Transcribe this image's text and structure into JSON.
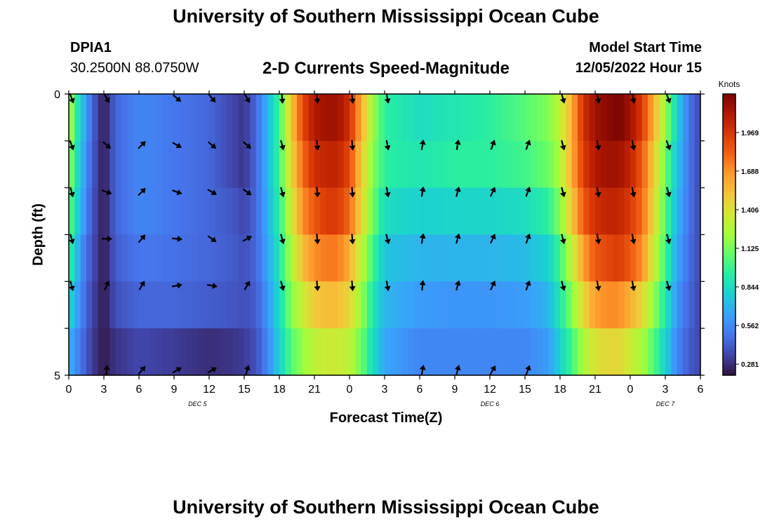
{
  "page": {
    "title_top": "University of Southern Mississippi Ocean Cube",
    "title_bottom": "University of Southern Mississippi Ocean Cube",
    "station_id": "DPIA1",
    "station_coords": "30.2500N  88.0750W",
    "chart_title": "2-D Currents Speed-Magnitude",
    "model_start_label": "Model Start Time",
    "model_start_value": "12/05/2022 Hour 15"
  },
  "colors": {
    "colormap": [
      "#30123b",
      "#4145ab",
      "#4675ed",
      "#39a2fc",
      "#1bcfd4",
      "#24eca6",
      "#61fc6c",
      "#a4fc3b",
      "#d1e834",
      "#f3c63a",
      "#fe9b2d",
      "#f36315",
      "#d93806",
      "#b11901",
      "#7a0402"
    ],
    "arrow": "#000000"
  },
  "chart_data": {
    "type": "heatmap",
    "title": "2-D Currents Speed-Magnitude",
    "xlabel": "Forecast Time(Z)",
    "ylabel": "Depth (ft)",
    "x_tick_labels": [
      "0",
      "3",
      "6",
      "9",
      "12",
      "15",
      "18",
      "21",
      "0",
      "3",
      "6",
      "9",
      "12",
      "15",
      "18",
      "21",
      "0",
      "3",
      "6"
    ],
    "x_hours": [
      0,
      3,
      6,
      9,
      12,
      15,
      18,
      21,
      24,
      27,
      30,
      33,
      36,
      39,
      42,
      45,
      48,
      51,
      54
    ],
    "xlim": [
      0,
      54
    ],
    "date_labels": [
      {
        "label": "DEC 5",
        "hour": 11
      },
      {
        "label": "DEC 6",
        "hour": 36
      },
      {
        "label": "DEC 7",
        "hour": 51
      }
    ],
    "y_tick_labels": [
      "0",
      "5"
    ],
    "ylim": [
      0,
      5
    ],
    "depth_levels": 6,
    "colorbar": {
      "label": "Knots",
      "ticks": [
        "1.969",
        "1.688",
        "1.406",
        "1.125",
        "0.844",
        "0.562",
        "0.281"
      ],
      "tick_values": [
        1.969,
        1.688,
        1.406,
        1.125,
        0.844,
        0.562,
        0.281
      ],
      "range": [
        0.2,
        2.25
      ]
    },
    "speed_keyframes": {
      "hours": [
        0,
        0.5,
        1,
        2,
        3,
        4,
        6,
        9,
        12,
        14,
        15,
        16,
        17,
        18,
        19,
        20,
        21,
        22,
        23,
        24,
        25,
        26,
        27,
        30,
        33,
        36,
        39,
        41,
        42,
        43,
        44,
        45,
        46,
        47,
        48,
        49,
        50,
        51,
        52,
        53,
        54
      ],
      "rows": [
        [
          1.35,
          1.0,
          0.8,
          0.45,
          0.22,
          0.45,
          0.55,
          0.5,
          0.45,
          0.35,
          0.3,
          0.45,
          0.7,
          1.0,
          1.5,
          1.9,
          2.1,
          2.15,
          2.15,
          2.0,
          1.6,
          1.2,
          0.95,
          0.85,
          0.9,
          0.95,
          1.05,
          1.15,
          1.3,
          1.6,
          2.0,
          2.15,
          2.2,
          2.25,
          2.15,
          1.95,
          1.6,
          1.2,
          0.8,
          0.5,
          0.35
        ],
        [
          1.25,
          0.95,
          0.75,
          0.42,
          0.22,
          0.45,
          0.55,
          0.5,
          0.45,
          0.35,
          0.3,
          0.45,
          0.7,
          1.0,
          1.45,
          1.8,
          2.0,
          2.05,
          2.05,
          1.9,
          1.5,
          1.15,
          0.95,
          0.9,
          0.95,
          0.95,
          1.0,
          1.1,
          1.25,
          1.6,
          1.95,
          2.1,
          2.15,
          2.15,
          2.05,
          1.85,
          1.5,
          1.1,
          0.75,
          0.5,
          0.35
        ],
        [
          1.1,
          0.9,
          0.7,
          0.4,
          0.22,
          0.45,
          0.55,
          0.5,
          0.45,
          0.4,
          0.35,
          0.45,
          0.68,
          0.95,
          1.35,
          1.7,
          1.85,
          1.95,
          1.95,
          1.8,
          1.45,
          1.1,
          0.85,
          0.8,
          0.82,
          0.82,
          0.85,
          0.95,
          1.15,
          1.5,
          1.85,
          2.0,
          2.05,
          2.05,
          1.95,
          1.8,
          1.45,
          1.05,
          0.7,
          0.5,
          0.35
        ],
        [
          1.0,
          0.8,
          0.6,
          0.38,
          0.22,
          0.42,
          0.5,
          0.48,
          0.45,
          0.42,
          0.38,
          0.45,
          0.65,
          0.9,
          1.25,
          1.55,
          1.7,
          1.75,
          1.75,
          1.6,
          1.3,
          1.0,
          0.75,
          0.7,
          0.7,
          0.7,
          0.72,
          0.8,
          1.0,
          1.3,
          1.65,
          1.85,
          1.9,
          1.95,
          1.85,
          1.7,
          1.35,
          1.0,
          0.65,
          0.48,
          0.35
        ],
        [
          0.85,
          0.7,
          0.55,
          0.35,
          0.22,
          0.38,
          0.45,
          0.45,
          0.42,
          0.4,
          0.38,
          0.42,
          0.6,
          0.85,
          1.15,
          1.35,
          1.5,
          1.55,
          1.55,
          1.45,
          1.2,
          0.9,
          0.7,
          0.62,
          0.6,
          0.6,
          0.62,
          0.7,
          0.9,
          1.15,
          1.45,
          1.65,
          1.7,
          1.7,
          1.6,
          1.45,
          1.2,
          0.9,
          0.6,
          0.45,
          0.35
        ],
        [
          0.7,
          0.6,
          0.5,
          0.32,
          0.22,
          0.3,
          0.35,
          0.32,
          0.28,
          0.3,
          0.32,
          0.38,
          0.55,
          0.8,
          1.05,
          1.2,
          1.3,
          1.35,
          1.35,
          1.3,
          1.1,
          0.85,
          0.65,
          0.55,
          0.55,
          0.55,
          0.55,
          0.62,
          0.8,
          1.0,
          1.25,
          1.4,
          1.45,
          1.45,
          1.35,
          1.25,
          1.05,
          0.8,
          0.55,
          0.42,
          0.35
        ]
      ]
    },
    "arrow_hours": [
      0,
      3,
      6,
      9,
      12,
      15,
      18,
      21,
      24,
      27,
      30,
      33,
      36,
      39,
      42,
      45,
      48,
      51
    ],
    "arrow_directions_deg": [
      [
        160,
        150,
        null,
        130,
        140,
        150,
        175,
        175,
        175,
        170,
        null,
        null,
        null,
        null,
        165,
        170,
        170,
        160
      ],
      [
        160,
        130,
        45,
        120,
        130,
        130,
        165,
        175,
        175,
        170,
        10,
        10,
        20,
        20,
        165,
        170,
        170,
        160
      ],
      [
        165,
        110,
        45,
        110,
        120,
        125,
        165,
        175,
        175,
        170,
        10,
        15,
        25,
        20,
        165,
        170,
        170,
        165
      ],
      [
        165,
        90,
        40,
        95,
        125,
        60,
        165,
        175,
        175,
        165,
        10,
        15,
        25,
        20,
        165,
        170,
        170,
        165
      ],
      [
        165,
        25,
        30,
        80,
        100,
        30,
        165,
        175,
        175,
        170,
        5,
        15,
        25,
        20,
        165,
        170,
        170,
        165
      ],
      [
        null,
        5,
        40,
        60,
        60,
        15,
        null,
        null,
        null,
        null,
        10,
        15,
        30,
        20,
        null,
        null,
        null,
        null
      ]
    ]
  }
}
